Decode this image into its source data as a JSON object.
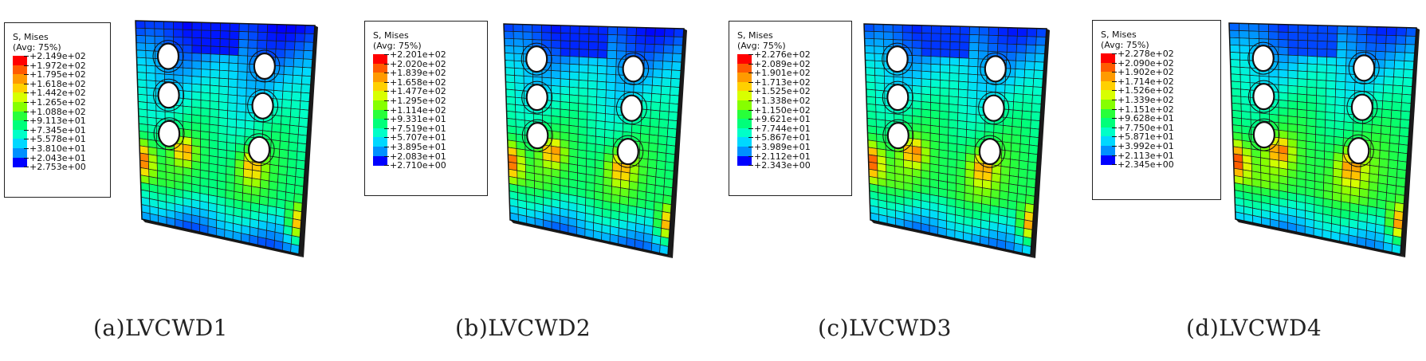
{
  "legend_colors": [
    "#ff0000",
    "#ff5a00",
    "#ff9a00",
    "#ffd000",
    "#d8ff00",
    "#86ff00",
    "#28ff3a",
    "#00ff7a",
    "#00ffc8",
    "#00d8ff",
    "#0090ff",
    "#0040ff",
    "#0000ff"
  ],
  "panels": [
    {
      "legend_title": "S, Mises",
      "legend_subtitle": "(Avg: 75%)",
      "legend_values": [
        "+2.149e+02",
        "+1.972e+02",
        "+1.795e+02",
        "+1.618e+02",
        "+1.442e+02",
        "+1.265e+02",
        "+1.088e+02",
        "+9.113e+01",
        "+7.345e+01",
        "+5.578e+01",
        "+3.810e+01",
        "+2.043e+01",
        "+2.753e+00"
      ],
      "caption": "(a)LVCWD1"
    },
    {
      "legend_title": "S, Mises",
      "legend_subtitle": "(Avg: 75%)",
      "legend_values": [
        "+2.201e+02",
        "+2.020e+02",
        "+1.839e+02",
        "+1.658e+02",
        "+1.477e+02",
        "+1.295e+02",
        "+1.114e+02",
        "+9.331e+01",
        "+7.519e+01",
        "+5.707e+01",
        "+3.895e+01",
        "+2.083e+01",
        "+2.710e+00"
      ],
      "caption": "(b)LVCWD2"
    },
    {
      "legend_title": "S, Mises",
      "legend_subtitle": "(Avg: 75%)",
      "legend_values": [
        "+2.276e+02",
        "+2.089e+02",
        "+1.901e+02",
        "+1.713e+02",
        "+1.525e+02",
        "+1.338e+02",
        "+1.150e+02",
        "+9.621e+01",
        "+7.744e+01",
        "+5.867e+01",
        "+3.989e+01",
        "+2.112e+01",
        "+2.343e+00"
      ],
      "caption": "(c)LVCWD3"
    },
    {
      "legend_title": "S, Mises",
      "legend_subtitle": "(Avg: 75%)",
      "legend_values": [
        "+2.278e+02",
        "+2.090e+02",
        "+1.902e+02",
        "+1.714e+02",
        "+1.526e+02",
        "+1.339e+02",
        "+1.151e+02",
        "+9.628e+01",
        "+7.750e+01",
        "+5.871e+01",
        "+3.992e+01",
        "+2.113e+01",
        "+2.345e+00"
      ],
      "caption": "(d)LVCWD4"
    }
  ]
}
